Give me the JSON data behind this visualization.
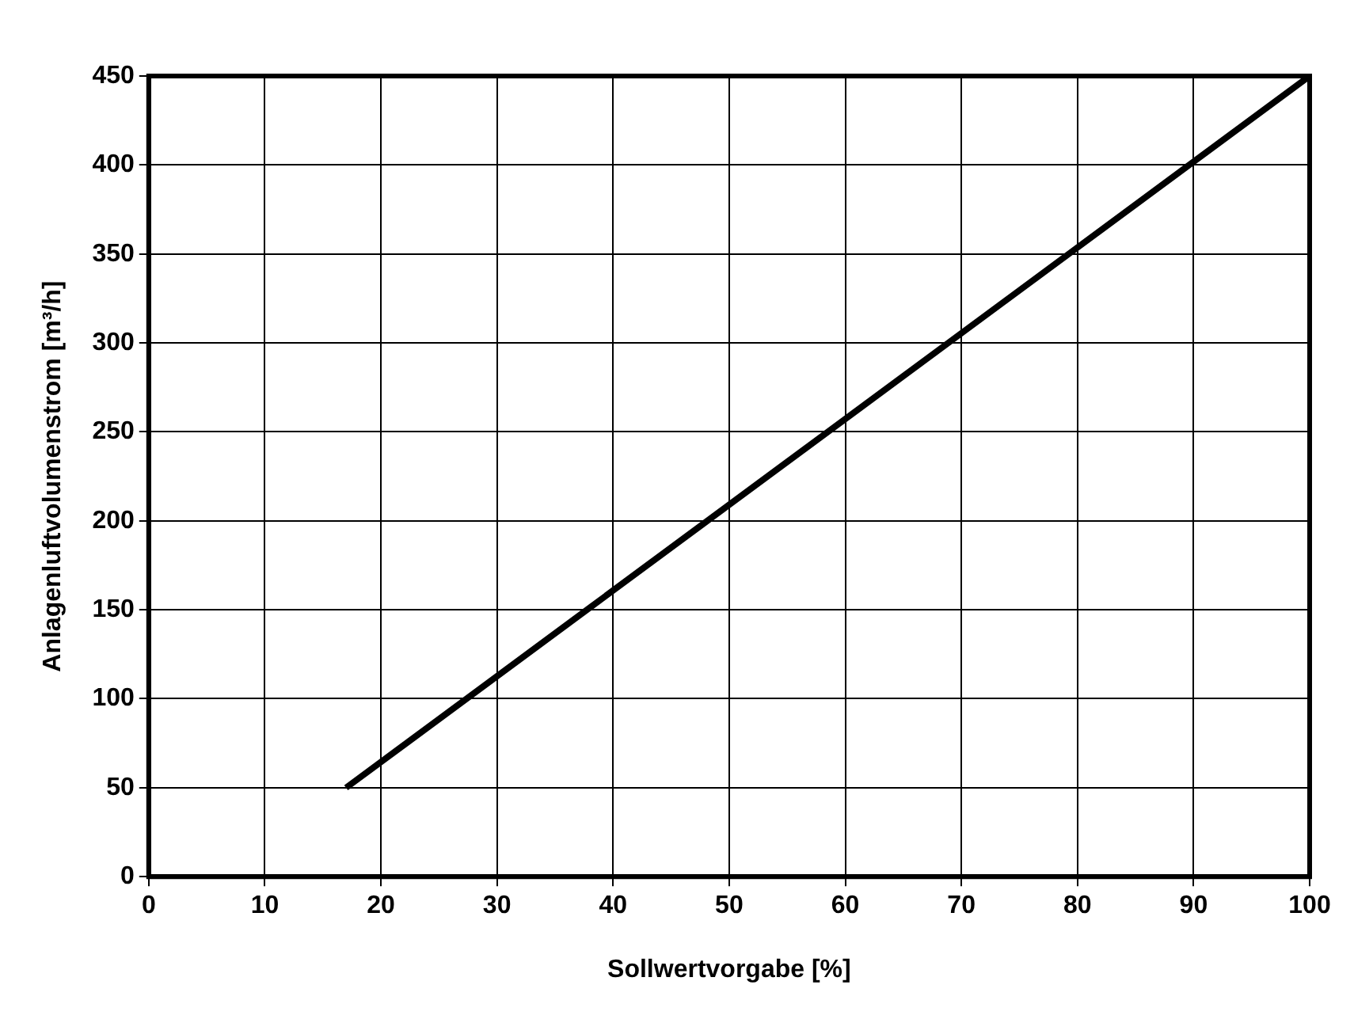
{
  "chart_data": {
    "type": "line",
    "xlabel": "Sollwertvorgabe [%]",
    "ylabel": "Anlagenluftvolumenstrom [m³/h]",
    "series": [
      {
        "color": "#000000",
        "x": [
          17,
          100
        ],
        "values": [
          50,
          450
        ]
      }
    ],
    "xlim": [
      0,
      100
    ],
    "xticks": [
      0,
      10,
      20,
      30,
      40,
      50,
      60,
      70,
      80,
      90,
      100
    ],
    "ylim": [
      0,
      450
    ],
    "yticks": [
      0,
      50,
      100,
      150,
      200,
      250,
      300,
      350,
      400,
      450
    ],
    "grid": true,
    "legend": false,
    "marker": "none",
    "line_style": "solid"
  }
}
